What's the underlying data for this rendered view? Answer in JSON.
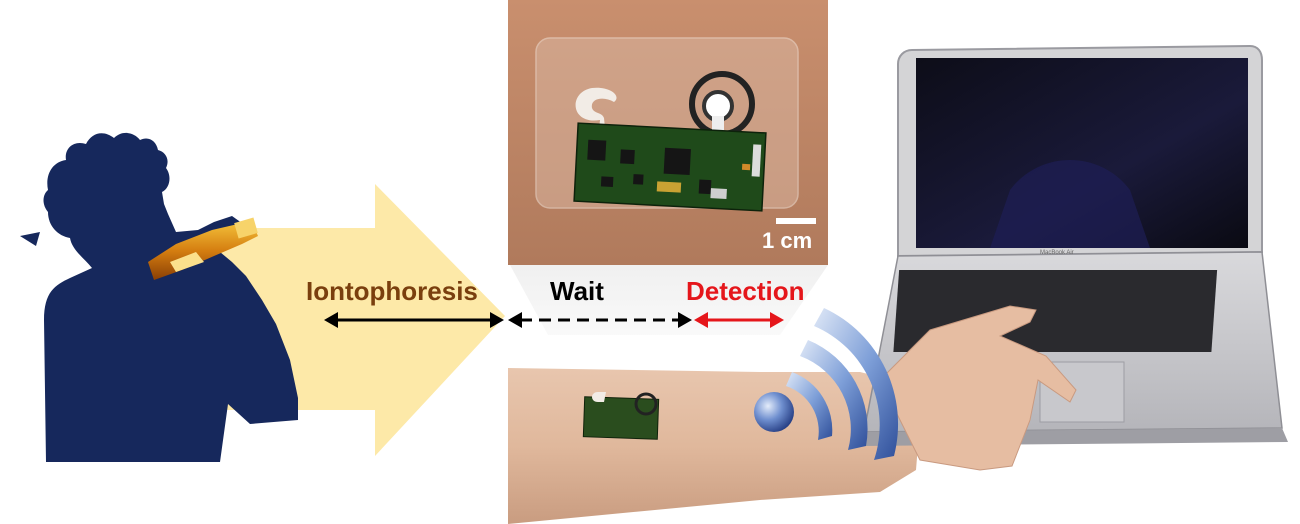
{
  "steps": {
    "iontophoresis": "Iontophoresis",
    "wait": "Wait",
    "detection": "Detection"
  },
  "scale_bar": {
    "label": "1 cm"
  },
  "laptop": {
    "brand_label": "MacBook Air"
  },
  "colors": {
    "iontophoresis_text": "#7a3f0e",
    "detection_text": "#e5161b",
    "detection_arrow": "#e5161b",
    "arrow_black": "#000000",
    "big_arrow_fill": "#fde9a8",
    "silhouette": "#16285c",
    "wifi_blue": "#4b70b8"
  }
}
